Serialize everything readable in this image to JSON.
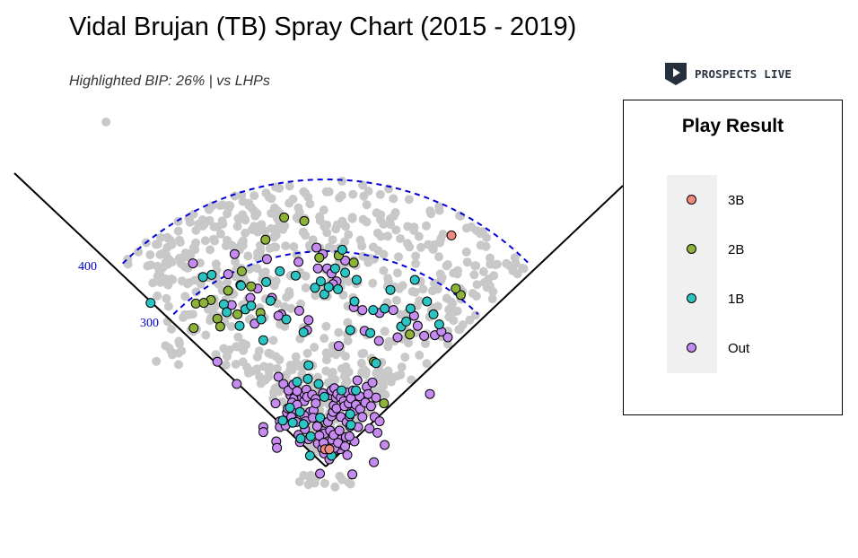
{
  "header": {
    "title": "Vidal Brujan (TB) Spray Chart (2015 - 2019)",
    "subtitle": "Highlighted BIP: 26% | vs LHPs",
    "logo_text": "PROSPECTS LIVE"
  },
  "legend": {
    "title": "Play Result",
    "items": [
      {
        "label": "3B",
        "color": "#F08A7E"
      },
      {
        "label": "2B",
        "color": "#8DB33A"
      },
      {
        "label": "1B",
        "color": "#2CC3C3"
      },
      {
        "label": "Out",
        "color": "#C68BF0"
      }
    ]
  },
  "colors": {
    "background_ball": "#c8c8c8",
    "distance_arc": "#0000dd",
    "foul_line": "#000000",
    "distance_label": "#0000cc"
  },
  "chart_data": {
    "type": "scatter",
    "title": "Vidal Brujan (TB) Spray Chart (2015 - 2019)",
    "subtitle": "Highlighted BIP: 26% | vs LHPs",
    "distance_arcs": [
      {
        "label": "300",
        "distance_ft": 300
      },
      {
        "label": "400",
        "distance_ft": 400
      }
    ],
    "note": "",
    "series": [
      {
        "name": "3B",
        "points": [
          [
            -1,
            24
          ],
          [
            5,
            24
          ],
          [
            175,
            322
          ]
        ]
      },
      {
        "name": "2B",
        "points": [
          [
            -151,
            206
          ],
          [
            -160,
            232
          ],
          [
            -184,
            193
          ],
          [
            -147,
            195
          ],
          [
            -181,
            227
          ],
          [
            -170,
            228
          ],
          [
            -123,
            212
          ],
          [
            -136,
            245
          ],
          [
            -104,
            251
          ],
          [
            -117,
            272
          ],
          [
            -84,
            316
          ],
          [
            -58,
            347
          ],
          [
            -30,
            342
          ],
          [
            18,
            294
          ],
          [
            39,
            284
          ],
          [
            188,
            239
          ],
          [
            181,
            248
          ],
          [
            67,
            146
          ],
          [
            81,
            88
          ],
          [
            117,
            184
          ],
          [
            -91,
            214
          ],
          [
            -9,
            291
          ]
        ]
      },
      {
        "name": "1B",
        "points": [
          [
            -244,
            228
          ],
          [
            -171,
            264
          ],
          [
            -159,
            267
          ],
          [
            -142,
            226
          ],
          [
            -138,
            215
          ],
          [
            -118,
            252
          ],
          [
            -112,
            219
          ],
          [
            -90,
            205
          ],
          [
            -83,
            257
          ],
          [
            -77,
            231
          ],
          [
            -64,
            272
          ],
          [
            -55,
            205
          ],
          [
            -42,
            266
          ],
          [
            -31,
            187
          ],
          [
            -15,
            249
          ],
          [
            -7,
            258
          ],
          [
            -2,
            240
          ],
          [
            4,
            250
          ],
          [
            17,
            247
          ],
          [
            13,
            276
          ],
          [
            23,
            302
          ],
          [
            27,
            270
          ],
          [
            43,
            260
          ],
          [
            40,
            230
          ],
          [
            66,
            218
          ],
          [
            82,
            220
          ],
          [
            105,
            195
          ],
          [
            112,
            202
          ],
          [
            118,
            220
          ],
          [
            124,
            260
          ],
          [
            141,
            230
          ],
          [
            150,
            212
          ],
          [
            158,
            198
          ],
          [
            -87,
            176
          ],
          [
            -120,
            196
          ],
          [
            -104,
            224
          ],
          [
            34,
            190
          ],
          [
            62,
            186
          ],
          [
            90,
            246
          ],
          [
            -40,
            118
          ],
          [
            -50,
            82
          ],
          [
            -25,
            122
          ],
          [
            -10,
            115
          ],
          [
            22,
            106
          ],
          [
            42,
            106
          ],
          [
            -21,
            42
          ],
          [
            -31,
            59
          ],
          [
            35,
            58
          ],
          [
            34,
            73
          ],
          [
            8,
            15
          ],
          [
            -8,
            68
          ],
          [
            -60,
            64
          ],
          [
            -46,
            61
          ],
          [
            -36,
            76
          ],
          [
            -24,
            141
          ],
          [
            -35,
            39
          ],
          [
            -22,
            15
          ],
          [
            -2,
            97
          ],
          [
            70,
            144
          ]
        ]
      },
      {
        "name": "Out",
        "points": [
          [
            -185,
            283
          ],
          [
            -136,
            268
          ],
          [
            -127,
            296
          ],
          [
            -119,
            253
          ],
          [
            -105,
            235
          ],
          [
            -95,
            248
          ],
          [
            -82,
            289
          ],
          [
            -75,
            235
          ],
          [
            -62,
            212
          ],
          [
            -38,
            285
          ],
          [
            -13,
            305
          ],
          [
            -11,
            276
          ],
          [
            -4,
            296
          ],
          [
            2,
            276
          ],
          [
            8,
            269
          ],
          [
            15,
            258
          ],
          [
            27,
            287
          ],
          [
            39,
            222
          ],
          [
            51,
            218
          ],
          [
            75,
            214
          ],
          [
            94,
            218
          ],
          [
            100,
            180
          ],
          [
            128,
            196
          ],
          [
            137,
            182
          ],
          [
            152,
            183
          ],
          [
            161,
            188
          ],
          [
            170,
            180
          ],
          [
            10,
            254
          ],
          [
            -24,
            204
          ],
          [
            -26,
            190
          ],
          [
            18,
            168
          ],
          [
            -124,
            115
          ],
          [
            -151,
            146
          ],
          [
            -131,
            225
          ],
          [
            -99,
            199
          ],
          [
            -66,
            210
          ],
          [
            -37,
            217
          ],
          [
            54,
            189
          ],
          [
            123,
            210
          ],
          [
            74,
            175
          ],
          [
            145,
            101
          ],
          [
            -69,
            35
          ],
          [
            -68,
            26
          ],
          [
            -59,
            115
          ],
          [
            -49,
            99
          ],
          [
            -44,
            95
          ],
          [
            -42,
            76
          ],
          [
            -38,
            44
          ],
          [
            -35,
            101
          ],
          [
            -33,
            96
          ],
          [
            -30,
            91
          ],
          [
            -30,
            101
          ],
          [
            -29,
            52
          ],
          [
            -27,
            107
          ],
          [
            -26,
            97
          ],
          [
            -24,
            38
          ],
          [
            -22,
            76
          ],
          [
            -19,
            100
          ],
          [
            -17,
            78
          ],
          [
            -14,
            94
          ],
          [
            -14,
            88
          ],
          [
            -11,
            32
          ],
          [
            -10,
            55
          ],
          [
            -6,
            41
          ],
          [
            -5,
            25
          ],
          [
            -4,
            49
          ],
          [
            -4,
            102
          ],
          [
            -2,
            46
          ],
          [
            1,
            25
          ],
          [
            3,
            62
          ],
          [
            6,
            50
          ],
          [
            7,
            99
          ],
          [
            8,
            106
          ],
          [
            8,
            70
          ],
          [
            9,
            37
          ],
          [
            10,
            76
          ],
          [
            11,
            44
          ],
          [
            11,
            85
          ],
          [
            12,
            109
          ],
          [
            13,
            23
          ],
          [
            14,
            96
          ],
          [
            15,
            81
          ],
          [
            16,
            101
          ],
          [
            19,
            50
          ],
          [
            20,
            24
          ],
          [
            21,
            69
          ],
          [
            21,
            96
          ],
          [
            22,
            38
          ],
          [
            23,
            30
          ],
          [
            25,
            91
          ],
          [
            26,
            84
          ],
          [
            28,
            41
          ],
          [
            29,
            62
          ],
          [
            30,
            103
          ],
          [
            32,
            88
          ],
          [
            33,
            70
          ],
          [
            34,
            56
          ],
          [
            35,
            95
          ],
          [
            38,
            106
          ],
          [
            39,
            77
          ],
          [
            40,
            35
          ],
          [
            42,
            86
          ],
          [
            45,
            55
          ],
          [
            47,
            98
          ],
          [
            48,
            80
          ],
          [
            51,
            69
          ],
          [
            55,
            89
          ],
          [
            57,
            111
          ],
          [
            59,
            101
          ],
          [
            61,
            53
          ],
          [
            63,
            84
          ],
          [
            65,
            117
          ],
          [
            68,
            69
          ],
          [
            70,
            96
          ],
          [
            72,
            47
          ],
          [
            75,
            63
          ],
          [
            -87,
            55
          ],
          [
            -87,
            48
          ],
          [
            -70,
            88
          ],
          [
            -66,
            125
          ],
          [
            -64,
            63
          ],
          [
            -64,
            55
          ],
          [
            -56,
            57
          ],
          [
            -54,
            75
          ],
          [
            -52,
            106
          ],
          [
            -48,
            69
          ],
          [
            -47,
            89
          ],
          [
            -45,
            114
          ],
          [
            -40,
            86
          ],
          [
            -40,
            105
          ],
          [
            -36,
            34
          ],
          [
            -30,
            71
          ],
          [
            -28,
            63
          ],
          [
            -18,
            68
          ],
          [
            -12,
            56
          ],
          [
            -9,
            43
          ],
          [
            -3,
            33
          ],
          [
            -2,
            18
          ],
          [
            5,
            10
          ],
          [
            12,
            26
          ],
          [
            17,
            33
          ],
          [
            27,
            28
          ],
          [
            37,
            -11
          ],
          [
            33,
            42
          ],
          [
            30,
            16
          ],
          [
            82,
            30
          ],
          [
            67,
            6
          ],
          [
            -8,
            -10
          ],
          [
            44,
            120
          ],
          [
            -53,
            81
          ],
          [
            -41,
            62
          ]
        ]
      }
    ]
  }
}
